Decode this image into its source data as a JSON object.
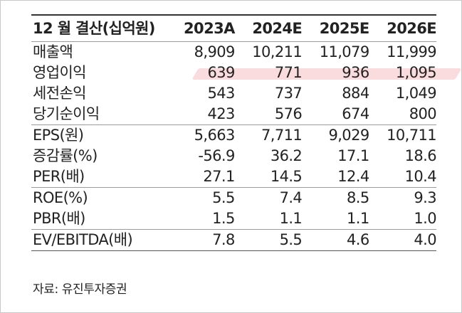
{
  "table": {
    "header": {
      "label": "12 월 결산(십억원)",
      "years": [
        "2023A",
        "2024E",
        "2025E",
        "2026E"
      ]
    },
    "rows": [
      {
        "label": "매출액",
        "values": [
          "8,909",
          "10,211",
          "11,079",
          "11,999"
        ]
      },
      {
        "label": "영업이익",
        "values": [
          "639",
          "771",
          "936",
          "1,095"
        ]
      },
      {
        "label": "세전손익",
        "values": [
          "543",
          "737",
          "884",
          "1,049"
        ]
      },
      {
        "label": "당기순이익",
        "values": [
          "423",
          "576",
          "674",
          "800"
        ]
      },
      {
        "label": "EPS(원)",
        "values": [
          "5,663",
          "7,711",
          "9,029",
          "10,711"
        ]
      },
      {
        "label": "증감률(%)",
        "values": [
          "-56.9",
          "36.2",
          "17.1",
          "18.6"
        ]
      },
      {
        "label": "PER(배)",
        "values": [
          "27.1",
          "14.5",
          "12.4",
          "10.4"
        ]
      },
      {
        "label": "ROE(%)",
        "values": [
          "5.5",
          "7.4",
          "8.5",
          "9.3"
        ]
      },
      {
        "label": "PBR(배)",
        "values": [
          "1.5",
          "1.1",
          "1.1",
          "1.0"
        ]
      },
      {
        "label": "EV/EBITDA(배)",
        "values": [
          "7.8",
          "5.5",
          "4.6",
          "4.0"
        ]
      }
    ]
  },
  "source": "자료: 유진투자증권",
  "colors": {
    "highlight": "#f08c96",
    "text": "#222222"
  }
}
